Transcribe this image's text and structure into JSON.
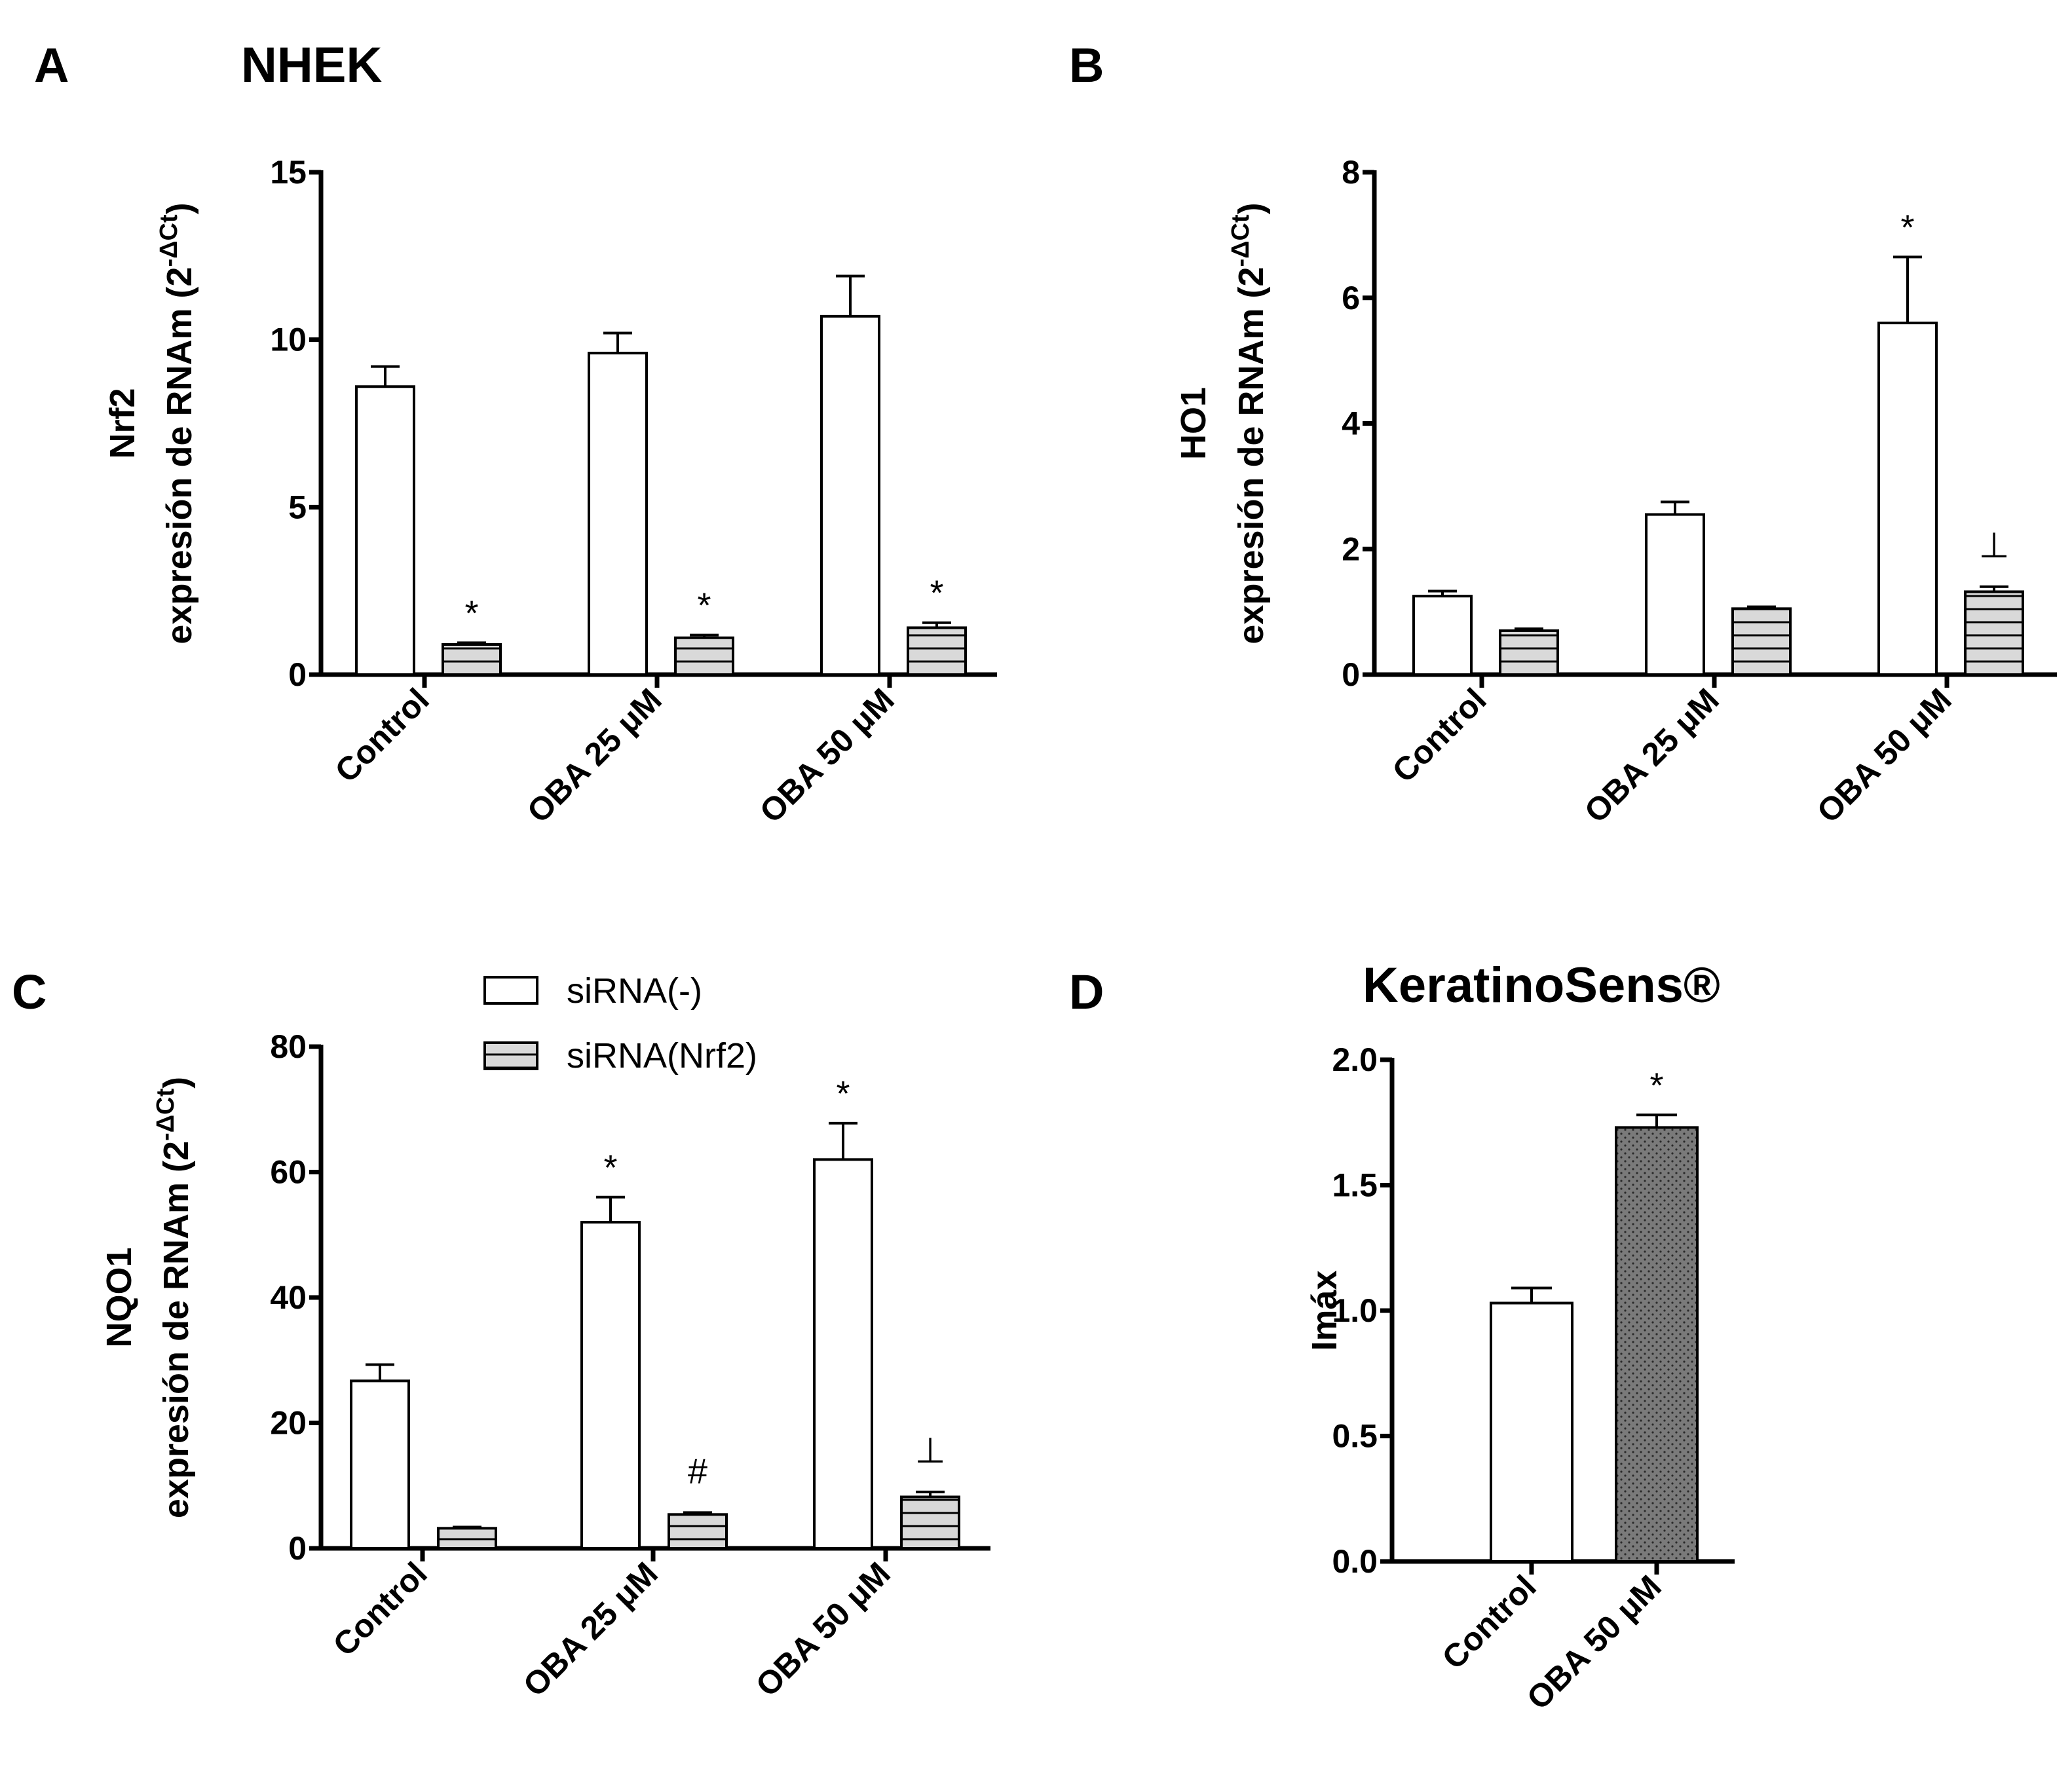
{
  "figure": {
    "title_nhek": "NHEK",
    "title_keratino": "KeratinoSens®",
    "panel_letters": [
      "A",
      "B",
      "C",
      "D"
    ]
  },
  "legend": {
    "items": [
      {
        "label": "siRNA(-)",
        "fill": "white"
      },
      {
        "label": "siRNA(Nrf2)",
        "fill": "striped"
      }
    ]
  },
  "colors": {
    "bar_stroke": "#000000",
    "white_bar": "#ffffff",
    "striped_bar": "#d9d9d9",
    "stripe_line": "#000000",
    "dotted_bar": "#7a7a7a"
  },
  "chart_data": [
    {
      "id": "A",
      "type": "bar",
      "title": "NHEK",
      "ylabel_line1": "Nrf2",
      "ylabel_line2": "expresión de RNAm (2",
      "ylabel_sup": "-ΔCt",
      "ylabel_close": ")",
      "ylim": [
        0,
        15
      ],
      "yticks": [
        0,
        5,
        10,
        15
      ],
      "categories": [
        "Control",
        "OBA 25 μM",
        "OBA 50 μM"
      ],
      "series": [
        {
          "name": "siRNA(-)",
          "fill": "white",
          "values": [
            8.6,
            9.6,
            10.7
          ],
          "errors": [
            0.6,
            0.6,
            1.2
          ],
          "annotations": [
            "",
            "",
            ""
          ]
        },
        {
          "name": "siRNA(Nrf2)",
          "fill": "striped",
          "values": [
            0.9,
            1.1,
            1.4
          ],
          "errors": [
            0.05,
            0.08,
            0.15
          ],
          "annotations": [
            "*",
            "*",
            "*"
          ]
        }
      ]
    },
    {
      "id": "B",
      "type": "bar",
      "title": "",
      "ylabel_line1": "HO1",
      "ylabel_line2": "expresión de RNAm (2",
      "ylabel_sup": "-ΔCt",
      "ylabel_close": ")",
      "ylim": [
        0,
        8
      ],
      "yticks": [
        0,
        2,
        4,
        6,
        8
      ],
      "categories": [
        "Control",
        "OBA 25 μM",
        "OBA 50 μM"
      ],
      "series": [
        {
          "name": "siRNA(-)",
          "fill": "white",
          "values": [
            1.25,
            2.55,
            5.6
          ],
          "errors": [
            0.08,
            0.2,
            1.05
          ],
          "annotations": [
            "",
            "",
            "*"
          ]
        },
        {
          "name": "siRNA(Nrf2)",
          "fill": "striped",
          "values": [
            0.7,
            1.05,
            1.32
          ],
          "errors": [
            0.03,
            0.03,
            0.08
          ],
          "annotations": [
            "",
            "",
            "⊥"
          ]
        }
      ]
    },
    {
      "id": "C",
      "type": "bar",
      "title": "",
      "ylabel_line1": "NQO1",
      "ylabel_line2": "expresión de RNAm (2",
      "ylabel_sup": "-ΔCt",
      "ylabel_close": ")",
      "ylim": [
        0,
        80
      ],
      "yticks": [
        0,
        20,
        40,
        60,
        80
      ],
      "categories": [
        "Control",
        "OBA 25 μM",
        "OBA 50 μM"
      ],
      "series": [
        {
          "name": "siRNA(-)",
          "fill": "white",
          "values": [
            26.7,
            52.0,
            62.0
          ],
          "errors": [
            2.6,
            4.0,
            5.8
          ],
          "annotations": [
            "",
            "*",
            "*"
          ]
        },
        {
          "name": "siRNA(Nrf2)",
          "fill": "striped",
          "values": [
            3.2,
            5.4,
            8.2
          ],
          "errors": [
            0.2,
            0.3,
            0.8
          ],
          "annotations": [
            "",
            "#",
            "⊥"
          ]
        }
      ]
    },
    {
      "id": "D",
      "type": "bar",
      "title": "KeratinoSens®",
      "ylabel_line1": "Imáx",
      "ylim": [
        0,
        2
      ],
      "yticks": [
        "0.0",
        "0.5",
        "1.0",
        "1.5",
        "2.0"
      ],
      "categories": [
        "Control",
        "OBA 50 μM"
      ],
      "series": [
        {
          "name": "Imáx",
          "values": [
            1.03,
            1.73
          ],
          "errors": [
            0.06,
            0.05
          ],
          "fills": [
            "white",
            "dotted"
          ],
          "annotations": [
            "",
            "*"
          ]
        }
      ]
    }
  ]
}
